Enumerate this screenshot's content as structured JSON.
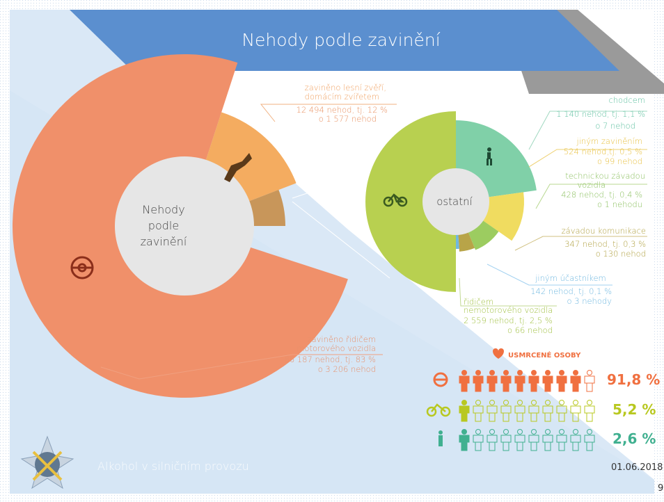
{
  "title": "Nehody podle zavinění",
  "main_chart": {
    "center_label": [
      "Nehody",
      "podle",
      "zavinění"
    ],
    "animals": {
      "label": [
        "zaviněno lesní zvěří,",
        "domácím zvířetem"
      ],
      "count": "12 494 nehod, tj. 12 %",
      "change": "o 1 577 nehod"
    },
    "drivers": {
      "label": [
        "zaviněno řidičem",
        "motorového vozidla"
      ],
      "count": "86 187 nehod, tj. 83 %",
      "change": "o 3 206 nehod"
    }
  },
  "other_chart": {
    "center_label": "ostatní",
    "pedestrians": {
      "label": [
        "chodcem"
      ],
      "count": "1 140 nehod, tj. 1,1 %",
      "change": "o 7 nehod"
    },
    "other_fault": {
      "label": [
        "jiným zaviněním"
      ],
      "count": "524 nehod,tj. 0,5 %",
      "change": "o 99 nehod"
    },
    "vehicle_defect": {
      "label": [
        "technickou závadou",
        "vozidla"
      ],
      "count": "428 nehod, tj. 0,4 %",
      "change": "o 1 nehodu"
    },
    "road_defect": {
      "label": [
        "závadou komunikace"
      ],
      "count": "347 nehod, tj. 0,3 %",
      "change": "o 130 nehod"
    },
    "other_participant": {
      "label": [
        "jiným účastníkem"
      ],
      "count": "142 nehod, tj. 0,1 %",
      "change": "o 3 nehody"
    },
    "cyclists": {
      "label": [
        "řidičem",
        "nemotorového vozidla"
      ],
      "count": "2 559 nehod, tj. 2,5 %",
      "change": "o 66 nehod"
    }
  },
  "fatalities": {
    "title": "USMRCENÉ OSOBY",
    "rows": [
      {
        "share": "91,8 %"
      },
      {
        "share": "5,2 %"
      },
      {
        "share": "2,6 %"
      }
    ]
  },
  "footer": {
    "text": "Alkohol v silničním provozu",
    "date": "01.06.2018",
    "page": "9"
  }
}
